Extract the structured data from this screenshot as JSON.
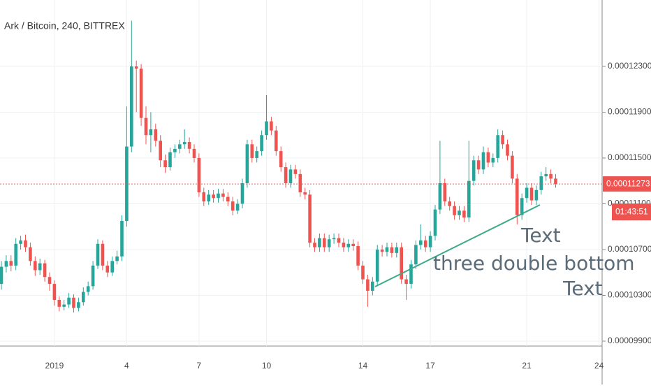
{
  "chart_data": {
    "type": "candlestick",
    "title": "Ark / Bitcoin, 240, BITTREX",
    "categories": [
      null,
      null,
      null,
      null,
      null,
      null,
      null,
      null,
      null,
      null,
      null,
      "2019",
      null,
      null,
      null,
      null,
      null,
      null,
      null,
      null,
      null,
      null,
      null,
      null,
      null,
      null,
      "4",
      null,
      null,
      null,
      null,
      null,
      null,
      null,
      null,
      null,
      null,
      null,
      null,
      null,
      null,
      "7",
      null,
      null,
      null,
      null,
      null,
      null,
      null,
      null,
      null,
      null,
      null,
      null,
      null,
      "10",
      null,
      null,
      null,
      null,
      null,
      null,
      null,
      null,
      null,
      null,
      null,
      null,
      null,
      null,
      null,
      null,
      null,
      null,
      null,
      "14",
      null,
      null,
      null,
      null,
      null,
      null,
      null,
      null,
      null,
      null,
      null,
      null,
      null,
      "17",
      null,
      null,
      null,
      null,
      null,
      null,
      null,
      null,
      null,
      null,
      null,
      null,
      null,
      null,
      null,
      null,
      null,
      null,
      null,
      "21",
      null,
      null,
      null,
      null,
      null,
      null,
      null,
      null,
      null,
      null,
      null,
      null,
      null,
      null,
      "24"
    ],
    "open": [
      0.000104,
      0.0001055,
      0.000106,
      0.0001056,
      0.0001075,
      0.0001078,
      0.0001072,
      0.000106,
      0.0001052,
      0.0001058,
      0.0001046,
      0.000104,
      0.0001026,
      0.000102,
      0.0001022,
      0.0001028,
      0.0001019,
      0.0001024,
      0.0001033,
      0.0001038,
      0.0001056,
      0.0001075,
      0.0001056,
      0.000105,
      0.000106,
      0.0001064,
      0.0001095,
      0.000116,
      0.000123,
      0.0001228,
      0.0001185,
      0.000117,
      0.0001175,
      0.0001165,
      0.0001148,
      0.0001142,
      0.0001155,
      0.0001158,
      0.0001162,
      0.0001164,
      0.0001158,
      0.000115,
      0.000112,
      0.0001112,
      0.0001118,
      0.0001115,
      0.0001119,
      0.0001116,
      0.0001112,
      0.0001104,
      0.000111,
      0.0001128,
      0.0001162,
      0.000115,
      0.0001156,
      0.000117,
      0.0001182,
      0.0001174,
      0.0001156,
      0.0001142,
      0.0001128,
      0.000114,
      0.0001136,
      0.000112,
      0.0001118,
      0.0001076,
      0.0001072,
      0.000108,
      0.0001072,
      0.0001079,
      0.000108,
      0.0001076,
      0.0001072,
      0.0001075,
      0.0001073,
      0.0001056,
      0.0001044,
      0.0001034,
      0.0001042,
      0.000107,
      0.0001068,
      0.0001072,
      0.0001067,
      0.0001072,
      0.0001044,
      0.000104,
      0.0001057,
      0.0001074,
      0.0001078,
      0.0001072,
      0.0001082,
      0.0001105,
      0.0001128,
      0.0001112,
      0.0001108,
      0.00011,
      0.0001104,
      0.0001098,
      0.000113,
      0.0001148,
      0.000114,
      0.0001155,
      0.0001146,
      0.000115,
      0.000117,
      0.0001162,
      0.0001152,
      0.0001132,
      0.00011,
      0.0001115,
      0.0001124,
      0.0001113,
      0.0001122,
      0.0001134,
      0.0001136,
      0.0001132,
      null,
      null,
      null,
      null,
      null,
      null,
      null,
      null,
      null
    ],
    "high": [
      0.000106,
      0.0001065,
      0.0001065,
      0.000108,
      0.0001082,
      0.0001083,
      0.0001076,
      0.0001064,
      0.0001062,
      0.0001061,
      0.000105,
      0.0001043,
      0.0001029,
      0.0001026,
      0.0001032,
      0.0001031,
      0.0001028,
      0.0001037,
      0.0001042,
      0.000106,
      0.0001079,
      0.0001078,
      0.000106,
      0.0001064,
      0.0001069,
      0.00011,
      0.0001195,
      0.000127,
      0.0001235,
      0.0001232,
      0.0001195,
      0.000119,
      0.000118,
      0.000117,
      0.0001153,
      0.0001159,
      0.0001162,
      0.0001166,
      0.0001175,
      0.0001168,
      0.0001162,
      0.0001154,
      0.0001124,
      0.0001122,
      0.0001122,
      0.0001123,
      0.0001123,
      0.000112,
      0.0001116,
      0.0001114,
      0.0001132,
      0.0001166,
      0.0001166,
      0.000116,
      0.0001174,
      0.0001205,
      0.0001186,
      0.0001178,
      0.000116,
      0.0001146,
      0.0001144,
      0.0001144,
      0.000114,
      0.0001124,
      0.0001122,
      0.000108,
      0.0001084,
      0.0001084,
      0.0001083,
      0.0001084,
      0.0001084,
      0.000108,
      0.0001079,
      0.0001079,
      0.0001077,
      0.000106,
      0.0001048,
      0.0001046,
      0.0001074,
      0.0001074,
      0.0001076,
      0.0001076,
      0.0001076,
      0.0001076,
      0.0001048,
      0.0001061,
      0.0001078,
      0.0001092,
      0.0001082,
      0.0001086,
      0.0001109,
      0.0001165,
      0.0001132,
      0.0001116,
      0.0001112,
      0.0001108,
      0.0001108,
      0.0001165,
      0.0001152,
      0.0001152,
      0.000116,
      0.0001159,
      0.0001154,
      0.0001175,
      0.0001174,
      0.0001166,
      0.0001156,
      0.0001136,
      0.0001119,
      0.0001128,
      0.0001128,
      0.0001126,
      0.0001138,
      0.0001142,
      0.000114,
      0.0001136,
      null,
      null,
      null,
      null,
      null,
      null,
      null,
      null,
      null
    ],
    "low": [
      0.0001035,
      0.000105,
      0.0001051,
      0.0001052,
      0.000107,
      0.0001068,
      0.0001056,
      0.0001047,
      0.0001048,
      0.0001042,
      0.0001034,
      0.0001021,
      0.0001016,
      0.0001017,
      0.0001019,
      0.0001015,
      0.0001016,
      0.0001021,
      0.000103,
      0.0001035,
      0.0001053,
      0.0001052,
      0.0001046,
      0.0001047,
      0.0001057,
      0.000106,
      0.000109,
      0.0001155,
      0.000119,
      0.0001178,
      0.0001162,
      0.0001155,
      0.000116,
      0.0001142,
      0.0001137,
      0.0001139,
      0.000115,
      0.0001154,
      0.0001158,
      0.0001154,
      0.0001146,
      0.0001116,
      0.0001108,
      0.0001109,
      0.0001111,
      0.0001111,
      0.0001112,
      0.0001108,
      0.00011,
      0.0001101,
      0.0001106,
      0.0001124,
      0.0001146,
      0.0001146,
      0.0001152,
      0.0001166,
      0.000117,
      0.0001152,
      0.0001138,
      0.0001124,
      0.0001124,
      0.0001132,
      0.0001116,
      0.0001114,
      0.0001072,
      0.0001068,
      0.0001068,
      0.0001068,
      0.0001068,
      0.0001075,
      0.0001072,
      0.0001068,
      0.0001068,
      0.0001069,
      0.0001052,
      0.000104,
      0.000102,
      0.000103,
      0.0001038,
      0.0001064,
      0.0001064,
      0.0001063,
      0.0001063,
      0.000104,
      0.0001026,
      0.0001036,
      0.0001053,
      0.000107,
      0.0001068,
      0.0001068,
      0.0001078,
      0.0001101,
      0.0001108,
      0.0001104,
      0.0001096,
      0.0001096,
      0.0001094,
      0.0001094,
      0.0001126,
      0.0001136,
      0.0001136,
      0.0001142,
      0.0001142,
      0.0001146,
      0.0001158,
      0.0001148,
      0.0001128,
      0.0001092,
      0.0001096,
      0.0001111,
      0.0001109,
      0.0001109,
      0.0001118,
      0.000113,
      0.0001128,
      0.0001124,
      null,
      null,
      null,
      null,
      null,
      null,
      null,
      null,
      null
    ],
    "close": [
      0.0001055,
      0.000106,
      0.0001056,
      0.0001075,
      0.0001078,
      0.0001072,
      0.000106,
      0.0001052,
      0.0001058,
      0.0001046,
      0.000104,
      0.0001026,
      0.000102,
      0.0001022,
      0.0001028,
      0.0001019,
      0.0001024,
      0.0001033,
      0.0001038,
      0.0001056,
      0.0001075,
      0.0001056,
      0.000105,
      0.000106,
      0.0001064,
      0.0001095,
      0.000116,
      0.000123,
      0.0001228,
      0.0001185,
      0.000117,
      0.0001175,
      0.0001165,
      0.0001148,
      0.0001142,
      0.0001155,
      0.0001158,
      0.0001162,
      0.0001164,
      0.0001158,
      0.000115,
      0.000112,
      0.0001112,
      0.0001118,
      0.0001115,
      0.0001119,
      0.0001116,
      0.0001112,
      0.0001104,
      0.000111,
      0.0001128,
      0.0001162,
      0.000115,
      0.0001156,
      0.000117,
      0.0001182,
      0.0001174,
      0.0001156,
      0.0001142,
      0.0001128,
      0.000114,
      0.0001136,
      0.000112,
      0.0001118,
      0.0001076,
      0.0001072,
      0.000108,
      0.0001072,
      0.0001079,
      0.000108,
      0.0001076,
      0.0001072,
      0.0001075,
      0.0001073,
      0.0001056,
      0.0001044,
      0.0001034,
      0.0001042,
      0.000107,
      0.0001068,
      0.0001072,
      0.0001067,
      0.0001072,
      0.0001044,
      0.000104,
      0.0001057,
      0.0001074,
      0.0001078,
      0.0001072,
      0.0001082,
      0.0001105,
      0.0001128,
      0.0001112,
      0.0001108,
      0.00011,
      0.0001104,
      0.0001098,
      0.000113,
      0.0001148,
      0.000114,
      0.0001155,
      0.0001146,
      0.000115,
      0.000117,
      0.0001162,
      0.0001152,
      0.0001132,
      0.00011,
      0.0001115,
      0.0001124,
      0.0001113,
      0.0001122,
      0.0001134,
      0.0001136,
      0.0001132,
      0.00011273,
      null,
      null,
      null,
      null,
      null,
      null,
      null,
      null,
      null
    ],
    "up_color": "#26a69a",
    "down_color": "#ef5350",
    "ylim": [
      9.857e-05,
      0.0001288
    ],
    "yticks": [
      {
        "value": 9.9e-05,
        "label": "0.00009900"
      },
      {
        "value": 0.000103,
        "label": "0.00010300"
      },
      {
        "value": 0.000107,
        "label": "0.00010700"
      },
      {
        "value": 0.000111,
        "label": "0.00011100"
      },
      {
        "value": 0.000115,
        "label": "0.00011500"
      },
      {
        "value": 0.000119,
        "label": "0.00011900"
      },
      {
        "value": 0.000123,
        "label": "0.00012300"
      }
    ],
    "grid": true,
    "current_price": 0.00011273,
    "countdown": "01:43:51",
    "annotations": [
      "Text",
      "three double bottom",
      "Text"
    ]
  }
}
